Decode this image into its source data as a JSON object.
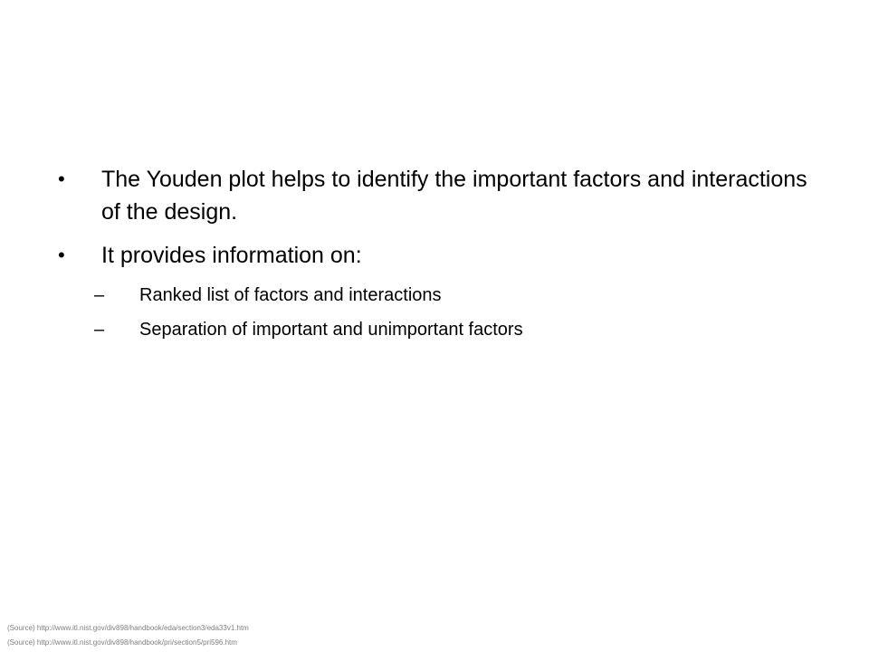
{
  "bullets": [
    {
      "marker": "•",
      "text": "The Youden plot helps to identify the important factors and interactions of the design."
    },
    {
      "marker": "•",
      "text": "It provides information on:"
    }
  ],
  "sub_bullets": [
    {
      "marker": "–",
      "text": "Ranked list of factors and interactions"
    },
    {
      "marker": "–",
      "text": "Separation of important and unimportant factors"
    }
  ],
  "sources": [
    "(Source) http://www.itl.nist.gov/div898/handbook/eda/section3/eda33v1.htm",
    "(Source) http://www.itl.nist.gov/div898/handbook/pri/section5/pri596.htm"
  ]
}
